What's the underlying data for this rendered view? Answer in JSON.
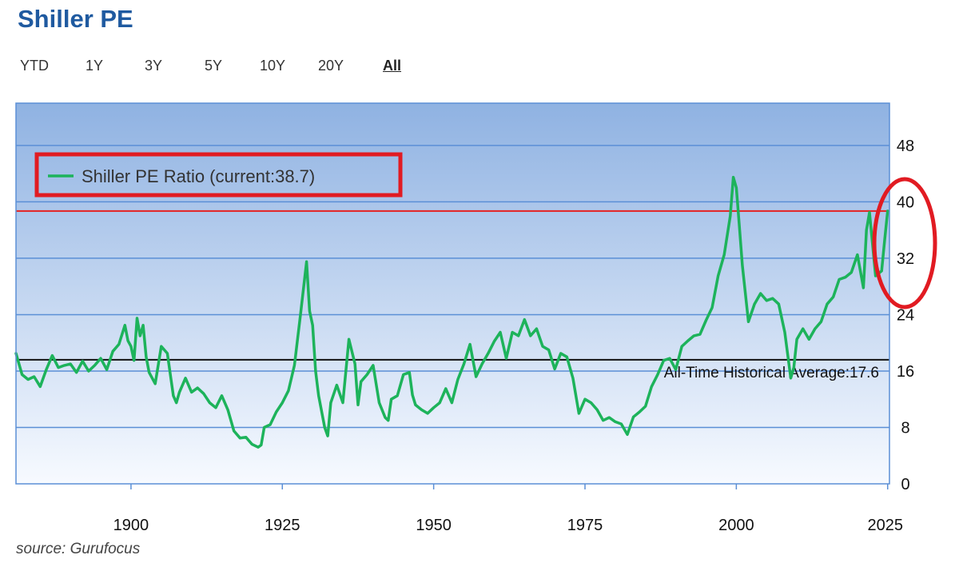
{
  "title": "Shiller PE",
  "ranges": [
    {
      "label": "YTD",
      "active": false
    },
    {
      "label": "1Y",
      "active": false
    },
    {
      "label": "3Y",
      "active": false
    },
    {
      "label": "5Y",
      "active": false
    },
    {
      "label": "10Y",
      "active": false
    },
    {
      "label": "20Y",
      "active": false
    },
    {
      "label": "All",
      "active": true
    }
  ],
  "source": "source: Gurufocus",
  "colors": {
    "series": "#1db35b",
    "current_line": "#e52222",
    "average_line": "#111111",
    "highlight": "#e11b22",
    "plot_top": "#8fb2e2",
    "plot_bottom": "#f7faff",
    "grid": "#5b8fd6"
  },
  "chart_data": {
    "type": "line",
    "title": "",
    "xlabel": "",
    "ylabel": "",
    "xlim": [
      1881,
      2025.3
    ],
    "ylim": [
      0,
      54
    ],
    "x_ticks": [
      1900,
      1925,
      1950,
      1975,
      2000,
      2025
    ],
    "y_ticks": [
      0,
      8,
      16,
      24,
      32,
      40,
      48
    ],
    "y_axis_side": "right",
    "grid": true,
    "legend_position": "top-left",
    "series": [
      {
        "name": "Shiller PE Ratio (current:38.7)",
        "x": [
          1881,
          1882,
          1883,
          1884,
          1885,
          1886,
          1887,
          1888,
          1889,
          1890,
          1891,
          1892,
          1893,
          1894,
          1895,
          1896,
          1897,
          1898,
          1899,
          1899.5,
          1900,
          1900.5,
          1901,
          1901.5,
          1902,
          1902.5,
          1903,
          1904,
          1905,
          1906,
          1907,
          1907.5,
          1908,
          1909,
          1910,
          1911,
          1912,
          1913,
          1914,
          1915,
          1916,
          1917,
          1918,
          1919,
          1920,
          1921,
          1921.5,
          1922,
          1923,
          1924,
          1925,
          1926,
          1927,
          1928,
          1929,
          1929.5,
          1930,
          1930.5,
          1931,
          1932,
          1932.5,
          1933,
          1934,
          1935,
          1936,
          1937,
          1937.5,
          1938,
          1939,
          1940,
          1941,
          1942,
          1942.5,
          1943,
          1944,
          1945,
          1946,
          1946.5,
          1947,
          1948,
          1949,
          1950,
          1951,
          1952,
          1953,
          1954,
          1955,
          1956,
          1957,
          1958,
          1959,
          1960,
          1961,
          1962,
          1963,
          1964,
          1965,
          1966,
          1967,
          1968,
          1969,
          1970,
          1971,
          1972,
          1973,
          1974,
          1975,
          1976,
          1977,
          1978,
          1979,
          1980,
          1981,
          1982,
          1983,
          1984,
          1985,
          1986,
          1987,
          1988,
          1989,
          1990,
          1991,
          1992,
          1993,
          1994,
          1995,
          1996,
          1997,
          1998,
          1999,
          1999.5,
          2000,
          2000.5,
          2001,
          2002,
          2003,
          2004,
          2005,
          2006,
          2007,
          2008,
          2009,
          2009.5,
          2010,
          2011,
          2012,
          2013,
          2014,
          2015,
          2016,
          2017,
          2018,
          2019,
          2020,
          2021,
          2021.5,
          2022,
          2022.5,
          2023,
          2024,
          2024.5,
          2025
        ],
        "values": [
          18.5,
          15.5,
          14.8,
          15.2,
          13.8,
          16.2,
          18.2,
          16.5,
          16.8,
          17.0,
          15.8,
          17.4,
          16.0,
          16.8,
          17.8,
          16.2,
          18.8,
          19.8,
          22.5,
          20.3,
          19.5,
          17.5,
          23.5,
          21.0,
          22.5,
          18.0,
          15.8,
          14.2,
          19.5,
          18.5,
          12.5,
          11.5,
          13.0,
          15.0,
          13.0,
          13.6,
          12.8,
          11.5,
          10.8,
          12.5,
          10.5,
          7.5,
          6.5,
          6.6,
          5.6,
          5.2,
          5.5,
          8.0,
          8.4,
          10.2,
          11.5,
          13.2,
          16.8,
          24.0,
          31.5,
          24.5,
          22.5,
          16.0,
          12.5,
          8.0,
          6.8,
          11.5,
          14.0,
          11.5,
          20.5,
          17.0,
          11.2,
          14.5,
          15.5,
          16.8,
          11.5,
          9.4,
          9.0,
          12.0,
          12.5,
          15.5,
          15.8,
          12.6,
          11.2,
          10.5,
          10.0,
          10.8,
          11.5,
          13.5,
          11.5,
          14.8,
          17.0,
          19.8,
          15.2,
          17.0,
          18.5,
          20.2,
          21.5,
          17.8,
          21.5,
          21.0,
          23.3,
          21.0,
          22.0,
          19.5,
          19.0,
          16.3,
          18.5,
          18.0,
          15.0,
          10.0,
          12.0,
          11.5,
          10.5,
          9.0,
          9.4,
          8.8,
          8.5,
          7.0,
          9.5,
          10.2,
          11.0,
          13.8,
          15.5,
          17.5,
          17.8,
          16.2,
          19.5,
          20.3,
          21.0,
          21.2,
          23.2,
          25.0,
          29.5,
          32.5,
          38.0,
          43.5,
          42.0,
          36.5,
          31.0,
          23.0,
          25.5,
          27.0,
          26.0,
          26.3,
          25.5,
          21.5,
          15.0,
          16.5,
          20.5,
          22.0,
          20.5,
          22.0,
          23.0,
          25.5,
          26.5,
          29.0,
          29.3,
          30.0,
          32.5,
          27.8,
          36.0,
          38.5,
          34.0,
          29.5,
          30.2,
          34.5,
          38.7
        ]
      }
    ],
    "reference_lines": [
      {
        "label": "Shiller PE Ratio (current:38.7)",
        "value": 38.7
      },
      {
        "label": "All-Time Historical Average:17.6",
        "value": 17.6
      }
    ]
  }
}
